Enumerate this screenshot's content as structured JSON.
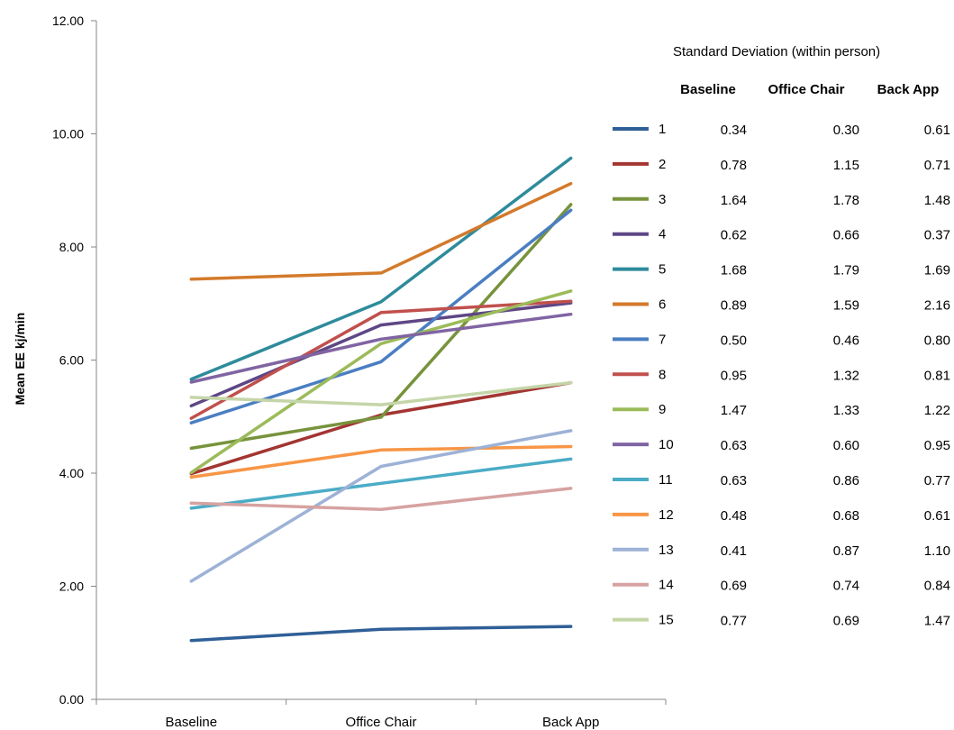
{
  "chart_data": {
    "type": "line",
    "categories": [
      "Baseline",
      "Office Chair",
      "Back App"
    ],
    "ylabel": "Mean EE kj/min",
    "ylim": [
      0,
      12
    ],
    "yticks": [
      "0.00",
      "2.00",
      "4.00",
      "6.00",
      "8.00",
      "10.00",
      "12.00"
    ],
    "grid": false,
    "series": [
      {
        "name": "1",
        "color": "#2F5F97",
        "values": [
          1.04,
          1.24,
          1.29
        ]
      },
      {
        "name": "2",
        "color": "#A33532",
        "values": [
          3.99,
          5.03,
          5.6
        ]
      },
      {
        "name": "3",
        "color": "#77933C",
        "values": [
          4.44,
          4.99,
          8.75
        ]
      },
      {
        "name": "4",
        "color": "#5E4785",
        "values": [
          5.19,
          6.62,
          7.01
        ]
      },
      {
        "name": "5",
        "color": "#2E8B9B",
        "values": [
          5.66,
          7.03,
          9.57
        ]
      },
      {
        "name": "6",
        "color": "#D37A2B",
        "values": [
          7.43,
          7.54,
          9.12
        ]
      },
      {
        "name": "7",
        "color": "#4A7EC2",
        "values": [
          4.89,
          5.97,
          8.65
        ]
      },
      {
        "name": "8",
        "color": "#C0504D",
        "values": [
          4.97,
          6.84,
          7.04
        ]
      },
      {
        "name": "9",
        "color": "#9BBB59",
        "values": [
          4.01,
          6.29,
          7.22
        ]
      },
      {
        "name": "10",
        "color": "#8064A2",
        "values": [
          5.61,
          6.37,
          6.81
        ]
      },
      {
        "name": "11",
        "color": "#4BACC6",
        "values": [
          3.38,
          3.82,
          4.25
        ]
      },
      {
        "name": "12",
        "color": "#F79646",
        "values": [
          3.93,
          4.41,
          4.47
        ]
      },
      {
        "name": "13",
        "color": "#9DB2D6",
        "values": [
          2.09,
          4.12,
          4.75
        ]
      },
      {
        "name": "14",
        "color": "#D6A2A1",
        "values": [
          3.47,
          3.36,
          3.73
        ]
      },
      {
        "name": "15",
        "color": "#C4D5A8",
        "values": [
          5.34,
          5.21,
          5.6
        ]
      }
    ]
  },
  "sd_table": {
    "title": "Standard Deviation (within person)",
    "headers": [
      "Baseline",
      "Office Chair",
      "Back App"
    ],
    "rows": [
      [
        "0.34",
        "0.30",
        "0.61"
      ],
      [
        "0.78",
        "1.15",
        "0.71"
      ],
      [
        "1.64",
        "1.78",
        "1.48"
      ],
      [
        "0.62",
        "0.66",
        "0.37"
      ],
      [
        "1.68",
        "1.79",
        "1.69"
      ],
      [
        "0.89",
        "1.59",
        "2.16"
      ],
      [
        "0.50",
        "0.46",
        "0.80"
      ],
      [
        "0.95",
        "1.32",
        "0.81"
      ],
      [
        "1.47",
        "1.33",
        "1.22"
      ],
      [
        "0.63",
        "0.60",
        "0.95"
      ],
      [
        "0.63",
        "0.86",
        "0.77"
      ],
      [
        "0.48",
        "0.68",
        "0.61"
      ],
      [
        "0.41",
        "0.87",
        "1.10"
      ],
      [
        "0.69",
        "0.74",
        "0.84"
      ],
      [
        "0.77",
        "0.69",
        "1.47"
      ]
    ]
  }
}
